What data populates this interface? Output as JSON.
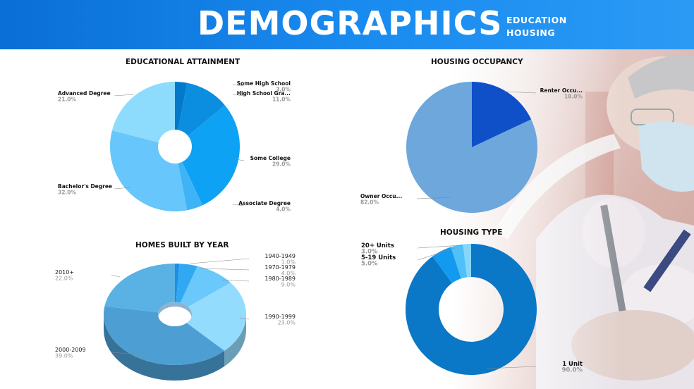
{
  "header": {
    "title": "DEMOGRAPHICS",
    "subtitle_lines": [
      "EDUCATION",
      "HOUSING"
    ]
  },
  "colors": {
    "header_bg": "#1283ea",
    "header_text": "#ffffff"
  },
  "chart_data": [
    {
      "id": "edu",
      "type": "pie",
      "title": "EDUCATIONAL ATTAINMENT",
      "slices": [
        {
          "label": "Some High School",
          "value": 3.0,
          "pct_label": "3.0%",
          "color": "#0479c9"
        },
        {
          "label": "High School Gra...",
          "value": 11.0,
          "pct_label": "11.0%",
          "color": "#0b8ee0"
        },
        {
          "label": "Some College",
          "value": 29.0,
          "pct_label": "29.0%",
          "color": "#0da2f4"
        },
        {
          "label": "Associate Degree",
          "value": 4.0,
          "pct_label": "4.0%",
          "color": "#3eb4f7"
        },
        {
          "label": "Bachelor's Degree",
          "value": 32.0,
          "pct_label": "32.0%",
          "color": "#67c6fb"
        },
        {
          "label": "Advanced Degree",
          "value": 21.0,
          "pct_label": "21.0%",
          "color": "#8edcfd"
        }
      ]
    },
    {
      "id": "occ",
      "type": "pie",
      "title": "HOUSING OCCUPANCY",
      "slices": [
        {
          "label": "Renter Occu...",
          "value": 18.0,
          "pct_label": "18.0%",
          "color": "#0f4fc8"
        },
        {
          "label": "Owner Occu...",
          "value": 82.0,
          "pct_label": "82.0%",
          "color": "#6ea7dc"
        }
      ]
    },
    {
      "id": "year",
      "type": "pie",
      "title": "HOMES BUILT BY YEAR",
      "slices": [
        {
          "label": "1940-1949",
          "value": 1.0,
          "pct_label": "1.0%",
          "color": "#1d8fe0"
        },
        {
          "label": "1970-1979",
          "value": 4.0,
          "pct_label": "4.0%",
          "color": "#31a8f2"
        },
        {
          "label": "1980-1989",
          "value": 9.0,
          "pct_label": "9.0%",
          "color": "#6ac8fb"
        },
        {
          "label": "1990-1999",
          "value": 23.0,
          "pct_label": "23.0%",
          "color": "#93dcfd"
        },
        {
          "label": "2000-2009",
          "value": 39.0,
          "pct_label": "39.0%",
          "color": "#4d9fd3"
        },
        {
          "label": "2010+",
          "value": 22.0,
          "pct_label": "22.0%",
          "color": "#5ab1e3"
        }
      ]
    },
    {
      "id": "type",
      "type": "pie",
      "title": "HOUSING TYPE",
      "slices": [
        {
          "label": "1 Unit",
          "value": 90.0,
          "pct_label": "90.0%",
          "color": "#0a77c7"
        },
        {
          "label": "5-19 Units",
          "value": 5.0,
          "pct_label": "5.0%",
          "color": "#129af0"
        },
        {
          "label": "20+ Units",
          "value": 3.0,
          "pct_label": "3.0%",
          "color": "#4fc0f8"
        },
        {
          "label": "",
          "value": 2.0,
          "pct_label": "",
          "color": "#86d6fc"
        }
      ]
    }
  ]
}
